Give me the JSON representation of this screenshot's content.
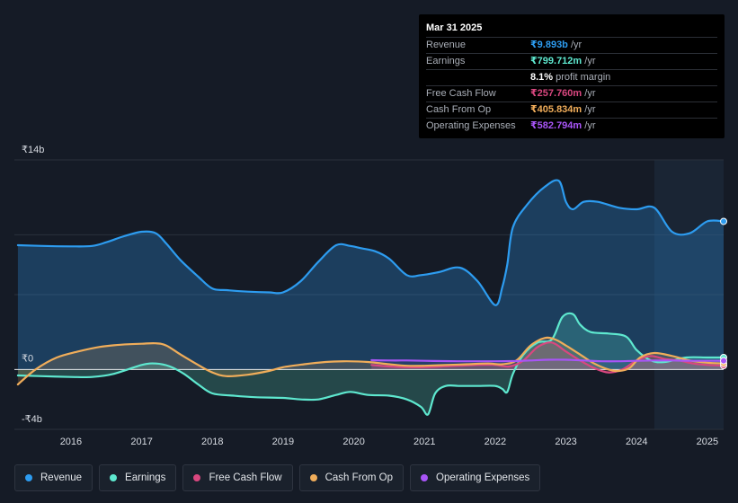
{
  "tooltip": {
    "date": "Mar 31 2025",
    "rows": [
      {
        "label": "Revenue",
        "value": "₹9.893b",
        "unit": "/yr",
        "color": "#2d9cf0"
      },
      {
        "label": "Earnings",
        "value": "₹799.712m",
        "unit": "/yr",
        "color": "#5ee8cf"
      },
      {
        "label": "",
        "value": "8.1%",
        "unit": "profit margin",
        "color": "#ffffff"
      },
      {
        "label": "Free Cash Flow",
        "value": "₹257.760m",
        "unit": "/yr",
        "color": "#d9477f"
      },
      {
        "label": "Cash From Op",
        "value": "₹405.834m",
        "unit": "/yr",
        "color": "#f0ad5a"
      },
      {
        "label": "Operating Expenses",
        "value": "₹582.794m",
        "unit": "/yr",
        "color": "#a855f7"
      }
    ]
  },
  "chart_data": {
    "type": "line",
    "title": "",
    "xlabel": "",
    "ylabel": "",
    "y_tick_labels": [
      "₹14b",
      "₹0",
      "-₹4b"
    ],
    "ylim": [
      -4,
      14
    ],
    "xlim": [
      2015.2,
      2025.23
    ],
    "x_ticks": [
      2016,
      2017,
      2018,
      2019,
      2020,
      2021,
      2022,
      2023,
      2024,
      2025
    ],
    "x_tick_labels": [
      "2016",
      "2017",
      "2018",
      "2019",
      "2020",
      "2021",
      "2022",
      "2023",
      "2024",
      "2025"
    ],
    "units": "INR billions",
    "forecast_shade_from": 2024.25,
    "legend_position": "bottom",
    "series": [
      {
        "name": "Revenue",
        "color": "#2d9cf0",
        "x": [
          2015.25,
          2015.6,
          2016.0,
          2016.3,
          2016.5,
          2016.75,
          2017.0,
          2017.2,
          2017.35,
          2017.55,
          2017.8,
          2018.0,
          2018.2,
          2018.5,
          2018.8,
          2019.0,
          2019.25,
          2019.5,
          2019.75,
          2019.95,
          2020.1,
          2020.3,
          2020.5,
          2020.75,
          2020.95,
          2021.2,
          2021.5,
          2021.75,
          2022.0,
          2022.1,
          2022.17,
          2022.25,
          2022.45,
          2022.7,
          2022.9,
          2023.0,
          2023.1,
          2023.25,
          2023.45,
          2023.75,
          2024.0,
          2024.25,
          2024.5,
          2024.75,
          2025.0,
          2025.23
        ],
        "values": [
          8.3,
          8.25,
          8.22,
          8.25,
          8.5,
          8.9,
          9.2,
          9.1,
          8.4,
          7.3,
          6.2,
          5.4,
          5.3,
          5.2,
          5.15,
          5.15,
          5.9,
          7.2,
          8.3,
          8.25,
          8.1,
          7.9,
          7.4,
          6.3,
          6.3,
          6.5,
          6.8,
          5.9,
          4.3,
          5.5,
          7.0,
          9.5,
          11.0,
          12.2,
          12.6,
          11.2,
          10.7,
          11.2,
          11.2,
          10.8,
          10.7,
          10.8,
          9.2,
          9.1,
          9.893,
          9.893
        ]
      },
      {
        "name": "Earnings",
        "color": "#5ee8cf",
        "x": [
          2015.25,
          2015.6,
          2016.0,
          2016.3,
          2016.6,
          2017.0,
          2017.2,
          2017.4,
          2017.6,
          2017.8,
          2018.0,
          2018.3,
          2018.6,
          2019.0,
          2019.25,
          2019.5,
          2019.75,
          2019.95,
          2020.2,
          2020.5,
          2020.75,
          2020.95,
          2021.05,
          2021.15,
          2021.3,
          2021.5,
          2021.75,
          2022.0,
          2022.1,
          2022.17,
          2022.25,
          2022.4,
          2022.6,
          2022.8,
          2022.95,
          2023.1,
          2023.2,
          2023.35,
          2023.6,
          2023.85,
          2024.0,
          2024.2,
          2024.4,
          2024.7,
          2025.0,
          2025.23
        ],
        "values": [
          -0.4,
          -0.45,
          -0.5,
          -0.5,
          -0.3,
          0.3,
          0.4,
          0.2,
          -0.3,
          -1.0,
          -1.6,
          -1.75,
          -1.85,
          -1.9,
          -2.0,
          -2.0,
          -1.7,
          -1.5,
          -1.7,
          -1.75,
          -2.0,
          -2.5,
          -3.0,
          -1.6,
          -1.1,
          -1.1,
          -1.1,
          -1.1,
          -1.3,
          -1.5,
          -0.3,
          1.0,
          1.8,
          2.0,
          3.5,
          3.7,
          3.0,
          2.5,
          2.4,
          2.2,
          1.3,
          0.6,
          0.5,
          0.8,
          0.8,
          0.8
        ]
      },
      {
        "name": "Free Cash Flow",
        "color": "#d9477f",
        "x": [
          2020.25,
          2020.5,
          2020.75,
          2021.0,
          2021.25,
          2021.5,
          2021.75,
          2022.0,
          2022.2,
          2022.4,
          2022.6,
          2022.8,
          2023.0,
          2023.2,
          2023.4,
          2023.6,
          2023.8,
          2024.0,
          2024.2,
          2024.4,
          2024.6,
          2024.8,
          2025.0,
          2025.23
        ],
        "values": [
          0.3,
          0.2,
          0.15,
          0.15,
          0.2,
          0.25,
          0.3,
          0.3,
          0.2,
          0.6,
          1.5,
          1.8,
          1.2,
          0.6,
          0.1,
          -0.2,
          0.0,
          0.6,
          0.9,
          0.7,
          0.6,
          0.4,
          0.3,
          0.258
        ]
      },
      {
        "name": "Cash From Op",
        "color": "#f0ad5a",
        "x": [
          2015.25,
          2015.5,
          2015.8,
          2016.1,
          2016.4,
          2016.7,
          2017.0,
          2017.2,
          2017.35,
          2017.55,
          2017.8,
          2018.0,
          2018.2,
          2018.5,
          2018.8,
          2019.0,
          2019.3,
          2019.6,
          2019.9,
          2020.2,
          2020.5,
          2020.75,
          2021.0,
          2021.3,
          2021.6,
          2021.9,
          2022.1,
          2022.3,
          2022.5,
          2022.7,
          2022.85,
          2023.0,
          2023.2,
          2023.4,
          2023.6,
          2023.75,
          2023.9,
          2024.05,
          2024.25,
          2024.5,
          2024.75,
          2025.0,
          2025.23
        ],
        "values": [
          -1.0,
          0.0,
          0.8,
          1.2,
          1.5,
          1.65,
          1.72,
          1.75,
          1.6,
          1.0,
          0.3,
          -0.2,
          -0.45,
          -0.35,
          -0.1,
          0.15,
          0.35,
          0.5,
          0.55,
          0.5,
          0.35,
          0.25,
          0.25,
          0.3,
          0.35,
          0.4,
          0.35,
          0.6,
          1.6,
          2.1,
          2.0,
          1.6,
          1.0,
          0.4,
          0.0,
          -0.1,
          0.1,
          0.8,
          1.1,
          0.9,
          0.6,
          0.45,
          0.406
        ]
      },
      {
        "name": "Operating Expenses",
        "color": "#a855f7",
        "x": [
          2020.25,
          2020.5,
          2020.75,
          2021.0,
          2021.25,
          2021.5,
          2021.75,
          2022.0,
          2022.25,
          2022.5,
          2022.75,
          2023.0,
          2023.25,
          2023.5,
          2023.75,
          2024.0,
          2024.25,
          2024.5,
          2024.75,
          2025.0,
          2025.23
        ],
        "values": [
          0.62,
          0.6,
          0.6,
          0.58,
          0.56,
          0.55,
          0.55,
          0.55,
          0.56,
          0.6,
          0.65,
          0.65,
          0.6,
          0.55,
          0.55,
          0.58,
          0.6,
          0.6,
          0.58,
          0.58,
          0.583
        ]
      }
    ]
  },
  "legend": [
    {
      "label": "Revenue",
      "color": "#2d9cf0"
    },
    {
      "label": "Earnings",
      "color": "#5ee8cf"
    },
    {
      "label": "Free Cash Flow",
      "color": "#d9477f"
    },
    {
      "label": "Cash From Op",
      "color": "#f0ad5a"
    },
    {
      "label": "Operating Expenses",
      "color": "#a855f7"
    }
  ]
}
